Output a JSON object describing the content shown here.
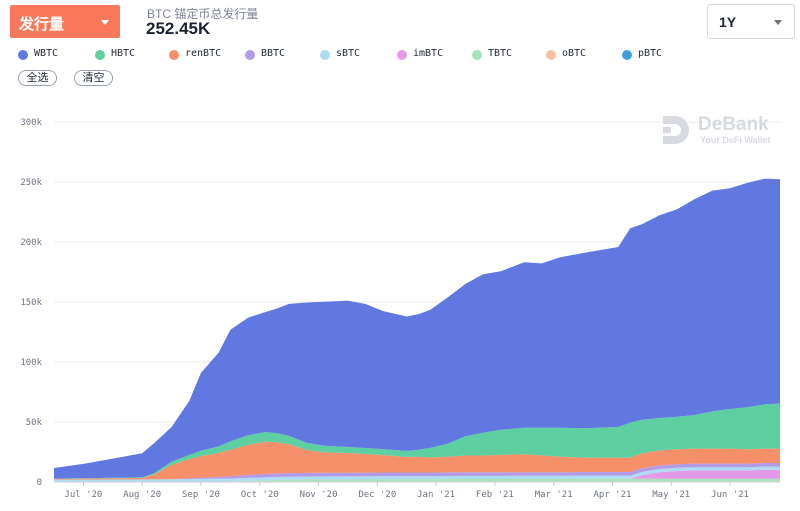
{
  "header": {
    "metric_label": "发行量",
    "supply_caption": "BTC 锚定币总发行量",
    "supply_value": "252.45K",
    "range_label": "1Y"
  },
  "legend": {
    "items": [
      {
        "name": "WBTC",
        "color": "#6178e0"
      },
      {
        "name": "HBTC",
        "color": "#5ecfa0"
      },
      {
        "name": "renBTC",
        "color": "#f6906a"
      },
      {
        "name": "BBTC",
        "color": "#b49be8"
      },
      {
        "name": "sBTC",
        "color": "#aedcf5"
      },
      {
        "name": "imBTC",
        "color": "#e39ae8"
      },
      {
        "name": "TBTC",
        "color": "#a8e2b8"
      },
      {
        "name": "oBTC",
        "color": "#f8c2a2"
      },
      {
        "name": "pBTC",
        "color": "#3f9fe0"
      }
    ],
    "select_all": "全选",
    "clear": "清空"
  },
  "watermark": {
    "title": "DeBank",
    "subtitle": "Your DeFi Wallet"
  },
  "chart_data": {
    "type": "area",
    "stacked": true,
    "title": "BTC 锚定币总发行量",
    "xlabel": "",
    "ylabel": "",
    "ylim": [
      0,
      300000
    ],
    "y_ticks": [
      0,
      50000,
      100000,
      150000,
      200000,
      250000,
      300000
    ],
    "y_tick_labels": [
      "0",
      "50k",
      "100k",
      "150k",
      "200k",
      "250k",
      "300k"
    ],
    "x_range": [
      0,
      12.35
    ],
    "x_ticks": [
      0.5,
      1.5,
      2.5,
      3.5,
      4.5,
      5.5,
      6.5,
      7.5,
      8.5,
      9.5,
      10.5,
      11.5
    ],
    "x_tick_labels": [
      "Jul '20",
      "Aug '20",
      "Sep '20",
      "Oct '20",
      "Nov '20",
      "Dec '20",
      "Jan '21",
      "Feb '21",
      "Mar '21",
      "Apr '21",
      "May '21",
      "Jun '21"
    ],
    "x": [
      0,
      0.5,
      1.0,
      1.5,
      1.7,
      2.0,
      2.3,
      2.5,
      2.8,
      3.0,
      3.3,
      3.6,
      3.8,
      4.0,
      4.3,
      4.6,
      5.0,
      5.3,
      5.6,
      6.0,
      6.2,
      6.4,
      6.7,
      7.0,
      7.3,
      7.6,
      8.0,
      8.3,
      8.6,
      9.0,
      9.3,
      9.6,
      9.8,
      10.0,
      10.3,
      10.6,
      10.9,
      11.2,
      11.5,
      11.8,
      12.1,
      12.35
    ],
    "series": [
      {
        "name": "pBTC",
        "values": [
          300,
          300,
          300,
          300,
          300,
          300,
          300,
          300,
          300,
          300,
          300,
          300,
          300,
          300,
          300,
          300,
          300,
          300,
          300,
          300,
          300,
          300,
          300,
          300,
          300,
          300,
          300,
          300,
          300,
          300,
          300,
          300,
          300,
          300,
          300,
          300,
          300,
          300,
          300,
          300,
          300,
          300
        ]
      },
      {
        "name": "oBTC",
        "values": [
          200,
          200,
          200,
          200,
          200,
          200,
          200,
          200,
          200,
          200,
          200,
          200,
          200,
          200,
          200,
          200,
          200,
          200,
          200,
          200,
          200,
          200,
          200,
          200,
          200,
          200,
          200,
          200,
          200,
          200,
          200,
          200,
          200,
          200,
          200,
          200,
          200,
          200,
          200,
          200,
          200,
          200
        ]
      },
      {
        "name": "TBTC",
        "values": [
          0,
          0,
          0,
          0,
          0,
          0,
          0,
          0,
          0,
          0,
          500,
          1000,
          1200,
          1400,
          1500,
          1500,
          1500,
          1600,
          1700,
          1800,
          1800,
          1800,
          1900,
          2000,
          2000,
          2000,
          2100,
          2100,
          2100,
          2200,
          2200,
          2200,
          2200,
          2200,
          2200,
          2200,
          2200,
          2200,
          2200,
          2200,
          2200,
          2200
        ]
      },
      {
        "name": "imBTC",
        "values": [
          0,
          0,
          0,
          0,
          0,
          0,
          0,
          0,
          0,
          0,
          0,
          0,
          0,
          0,
          0,
          0,
          0,
          0,
          0,
          0,
          0,
          0,
          0,
          0,
          0,
          0,
          0,
          0,
          0,
          0,
          0,
          0,
          0,
          3000,
          5500,
          6500,
          7000,
          7000,
          7000,
          7000,
          7500,
          7500
        ]
      },
      {
        "name": "sBTC",
        "values": [
          1500,
          1500,
          1600,
          1700,
          1700,
          1800,
          2000,
          2100,
          2200,
          2300,
          2400,
          2400,
          2500,
          2500,
          2600,
          2700,
          2700,
          2700,
          2700,
          2600,
          2600,
          2600,
          2600,
          2600,
          2600,
          2600,
          2600,
          2600,
          2600,
          2600,
          2600,
          2600,
          2600,
          2600,
          2600,
          2600,
          2600,
          2600,
          2600,
          2600,
          2600,
          2600
        ]
      },
      {
        "name": "BBTC",
        "values": [
          0,
          0,
          0,
          0,
          0,
          0,
          500,
          1000,
          1500,
          2000,
          2500,
          2800,
          3000,
          3000,
          3000,
          3000,
          3000,
          3000,
          3000,
          3000,
          3000,
          3000,
          3000,
          3000,
          3000,
          3000,
          3000,
          3000,
          3000,
          3000,
          3000,
          3000,
          3000,
          3000,
          3000,
          3000,
          3000,
          3000,
          3000,
          3000,
          3000,
          3000
        ]
      },
      {
        "name": "renBTC",
        "values": [
          500,
          800,
          1000,
          1200,
          4000,
          12000,
          16000,
          18000,
          20000,
          22000,
          25000,
          27000,
          26000,
          24000,
          19000,
          17000,
          16500,
          15500,
          14500,
          13000,
          13000,
          12500,
          13000,
          14000,
          14000,
          14500,
          15000,
          14000,
          13000,
          12000,
          12000,
          12000,
          12000,
          12500,
          12500,
          12500,
          12500,
          12500,
          12500,
          12000,
          12000,
          12000
        ]
      },
      {
        "name": "HBTC",
        "values": [
          200,
          300,
          400,
          500,
          1000,
          2500,
          3500,
          4500,
          5500,
          7000,
          8000,
          8000,
          7500,
          7000,
          6000,
          5500,
          5000,
          5000,
          5000,
          5000,
          6000,
          8000,
          11000,
          16000,
          19000,
          21000,
          22000,
          23000,
          24000,
          24500,
          25000,
          25500,
          29000,
          28000,
          27000,
          27000,
          28000,
          31000,
          33000,
          35000,
          37000,
          37500
        ]
      },
      {
        "name": "WBTC",
        "values": [
          9000,
          12000,
          16000,
          20000,
          25000,
          29000,
          45000,
          65000,
          78000,
          93000,
          98000,
          100000,
          104000,
          110000,
          117000,
          120000,
          122000,
          120000,
          115000,
          112000,
          113000,
          115000,
          122000,
          127000,
          132000,
          132000,
          138000,
          137000,
          142000,
          146000,
          148000,
          150000,
          162000,
          163000,
          169000,
          173000,
          180000,
          184000,
          184000,
          187000,
          188000,
          187000
        ]
      }
    ]
  }
}
